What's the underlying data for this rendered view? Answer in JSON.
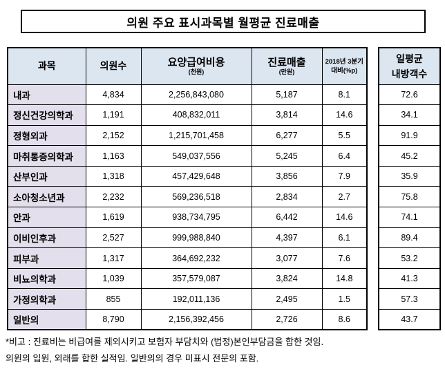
{
  "title": "의원 주요 표시과목별 월평균 진료매출",
  "table": {
    "headers": {
      "subject": "과목",
      "clinics": "의원수",
      "cost": "요양급여비용",
      "cost_unit": "(천원)",
      "revenue": "진료매출",
      "revenue_unit": "(만원)",
      "yoy_line1": "2018년 3분기",
      "yoy_line2": "대비(%p)"
    },
    "rows": [
      {
        "subject": "내과",
        "clinics": "4,834",
        "cost": "2,256,843,080",
        "revenue": "5,187",
        "yoy": "8.1",
        "visitors": "72.6"
      },
      {
        "subject": "정신건강의학과",
        "clinics": "1,191",
        "cost": "408,832,011",
        "revenue": "3,814",
        "yoy": "14.6",
        "visitors": "34.1"
      },
      {
        "subject": "정형외과",
        "clinics": "2,152",
        "cost": "1,215,701,458",
        "revenue": "6,277",
        "yoy": "5.5",
        "visitors": "91.9"
      },
      {
        "subject": "마취통증의학과",
        "clinics": "1,163",
        "cost": "549,037,556",
        "revenue": "5,245",
        "yoy": "6.4",
        "visitors": "45.2"
      },
      {
        "subject": "산부인과",
        "clinics": "1,318",
        "cost": "457,429,648",
        "revenue": "3,856",
        "yoy": "7.9",
        "visitors": "35.9"
      },
      {
        "subject": "소아청소년과",
        "clinics": "2,232",
        "cost": "569,236,518",
        "revenue": "2,834",
        "yoy": "2.7",
        "visitors": "75.8"
      },
      {
        "subject": "안과",
        "clinics": "1,619",
        "cost": "938,734,795",
        "revenue": "6,442",
        "yoy": "14.6",
        "visitors": "74.1"
      },
      {
        "subject": "이비인후과",
        "clinics": "2,527",
        "cost": "999,988,840",
        "revenue": "4,397",
        "yoy": "6.1",
        "visitors": "89.4"
      },
      {
        "subject": "피부과",
        "clinics": "1,317",
        "cost": "364,692,232",
        "revenue": "3,077",
        "yoy": "7.6",
        "visitors": "53.2"
      },
      {
        "subject": "비뇨의학과",
        "clinics": "1,039",
        "cost": "357,579,087",
        "revenue": "3,824",
        "yoy": "14.8",
        "visitors": "41.3"
      },
      {
        "subject": "가정의학과",
        "clinics": "855",
        "cost": "192,011,136",
        "revenue": "2,495",
        "yoy": "1.5",
        "visitors": "57.3"
      },
      {
        "subject": "일반의",
        "clinics": "8,790",
        "cost": "2,156,392,456",
        "revenue": "2,726",
        "yoy": "8.6",
        "visitors": "43.7"
      }
    ]
  },
  "side_table": {
    "header_line1": "일평균",
    "header_line2": "내방객수"
  },
  "notes": [
    "*비고 : 진료비는 비급여를 제외시키고 보험자 부담치와 (법정)본인부담금을 합한 것임.",
    "의원의 입원, 외래를 합한 실적임. 일반의의 경우 미표시 전문의 포함."
  ],
  "colors": {
    "header_bg": "#DCE6F1",
    "subject_bg": "#E4DFEC",
    "border": "#000000"
  }
}
